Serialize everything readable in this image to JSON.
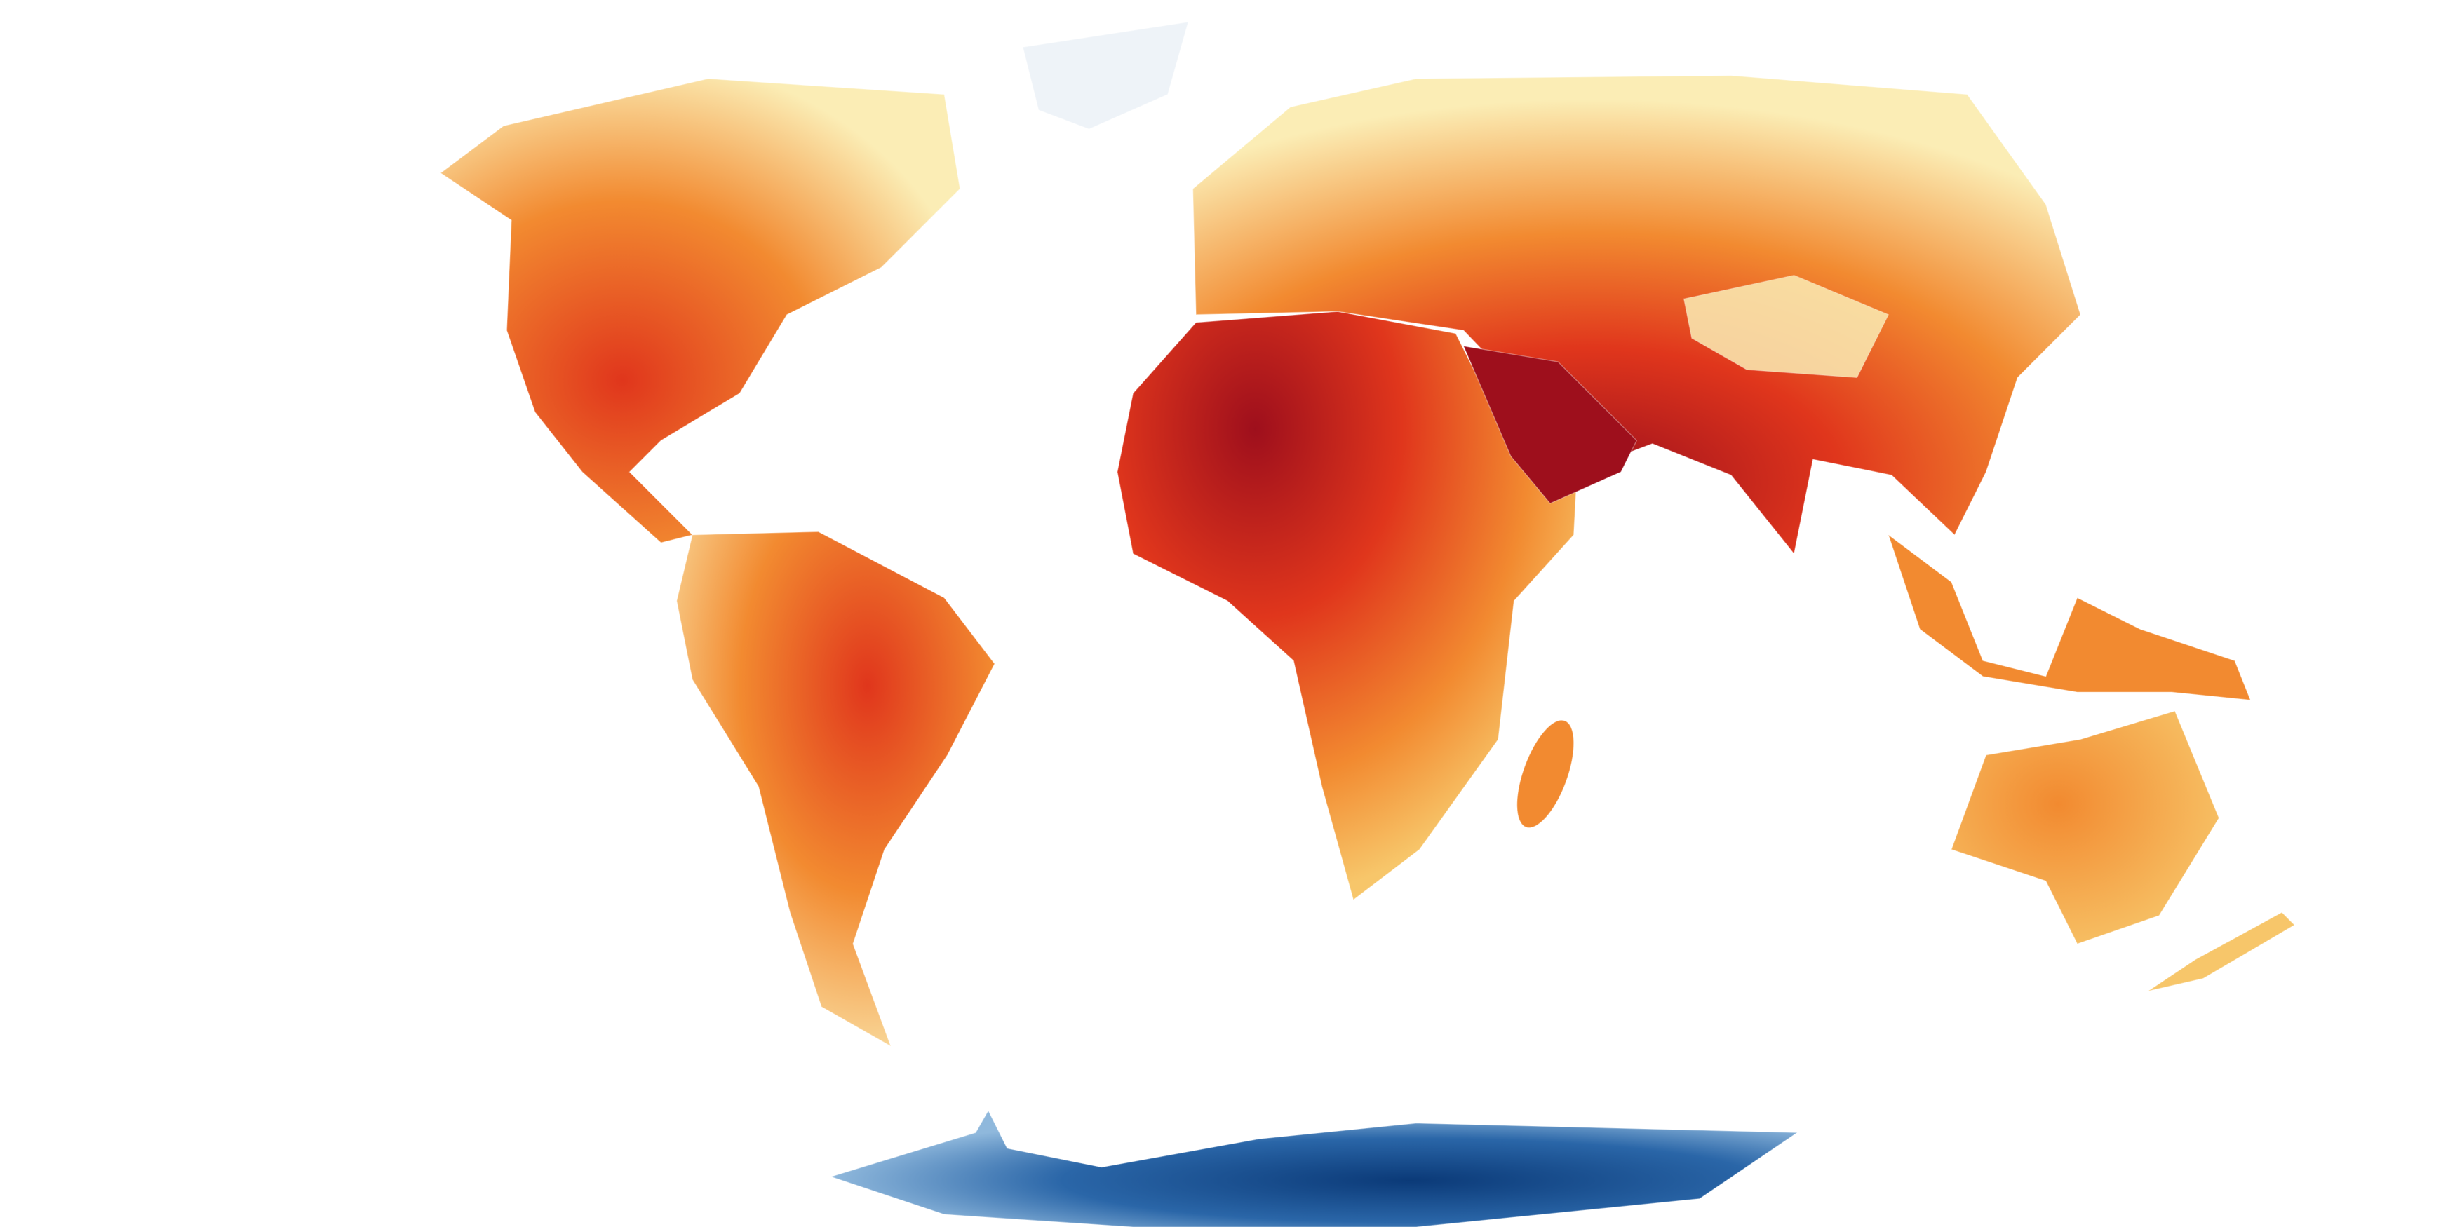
{
  "map": {
    "type": "world-heat-map",
    "background": "#ffffff",
    "colors": {
      "hottest": "#9e0f1c",
      "hot": "#e0361c",
      "warm": "#f28a30",
      "mild": "#f7c66a",
      "cool": "#fbedb5",
      "ice": "#eef3f8",
      "cold_light": "#8fb8dc",
      "cold": "#2a66a8",
      "coldest": "#0b3a78"
    },
    "borders": "white"
  }
}
